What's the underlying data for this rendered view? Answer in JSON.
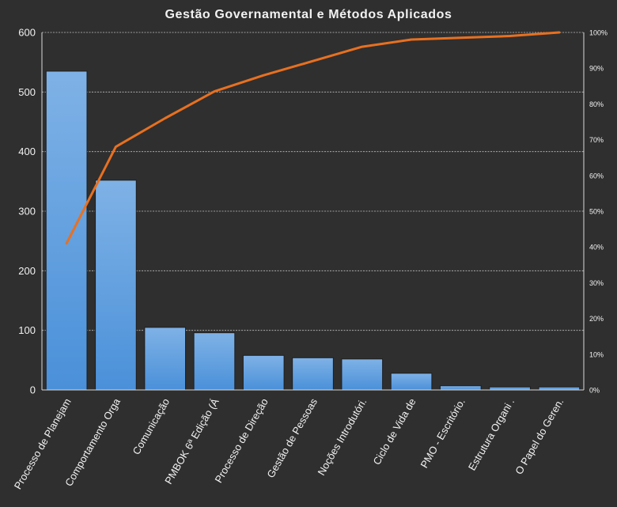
{
  "chart_data": {
    "type": "bar",
    "title": "Gestão Governamental  e Métodos Aplicados",
    "categories": [
      "Processo de Planejam",
      "Comportamento  Orga",
      "Comunicação",
      "PMBOK 6ª Edição (Á",
      "Processo de Direção",
      "Gestão de Pessoas",
      "Noções Introdutóri.",
      "Ciclo de Vida de",
      "PMO - Escritório.",
      "Estrutura Organi .",
      "O Papel do Geren."
    ],
    "series": [
      {
        "values": [
          535,
          352,
          105,
          96,
          58,
          54,
          52,
          28,
          7,
          5,
          5
        ]
      },
      {
        "axis": "secondary",
        "values": [
          0.41,
          0.68,
          0.76,
          0.835,
          0.88,
          0.92,
          0.96,
          0.98,
          0.985,
          0.99,
          1.0
        ]
      }
    ],
    "ylim": [
      0,
      600
    ],
    "yticks": [
      "0",
      "100",
      "200",
      "300",
      "400",
      "500",
      "600"
    ],
    "y2lim": [
      0,
      1
    ],
    "y2ticks": [
      "0%",
      "10%",
      "20%",
      "30%",
      "40%",
      "50%",
      "60%",
      "70%",
      "80%",
      "90%",
      "100%"
    ],
    "grid": true,
    "colors": {
      "bar": "#4a90d9",
      "bar_top": "#7fb2e6",
      "line": "#e87020",
      "background": "#2f2f2f"
    }
  }
}
